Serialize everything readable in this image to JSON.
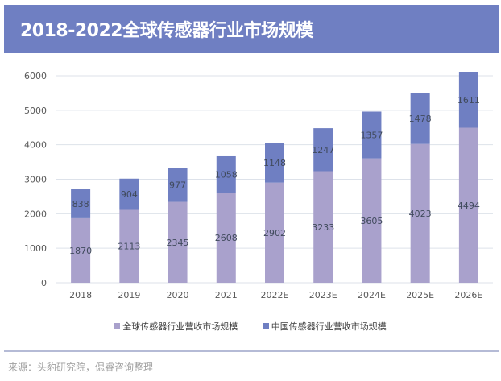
{
  "header": {
    "title": "2018-2022全球传感器行业市场规模"
  },
  "colors": {
    "title_bg": "#6f7fc2",
    "global": "#a9a1cc",
    "china": "#6f7fc2",
    "grid": "#dde2ea",
    "divider": "#b5bbd6"
  },
  "chart_data": {
    "type": "bar",
    "stacked": true,
    "title": "2018-2022全球传感器行业市场规模",
    "xlabel": "",
    "ylabel": "",
    "ylim": [
      0,
      6000
    ],
    "yticks": [
      0,
      1000,
      2000,
      3000,
      4000,
      5000,
      6000
    ],
    "grid": true,
    "legend_position": "bottom",
    "categories": [
      "2018",
      "2019",
      "2020",
      "2021",
      "2022E",
      "2023E",
      "2024E",
      "2025E",
      "2026E"
    ],
    "series": [
      {
        "name": "全球传感器行业营收市场规模",
        "color": "#a9a1cc",
        "values": [
          1870,
          2113,
          2345,
          2608,
          2902,
          3233,
          3605,
          4023,
          4494
        ]
      },
      {
        "name": "中国传感器行业营收市场规模",
        "color": "#6f7fc2",
        "values": [
          838,
          904,
          977,
          1058,
          1148,
          1247,
          1357,
          1478,
          1611
        ]
      }
    ]
  },
  "legend": [
    {
      "label": "全球传感器行业营收市场规模",
      "color": "#a9a1cc"
    },
    {
      "label": "中国传感器行业营收市场规模",
      "color": "#6f7fc2"
    }
  ],
  "footer": {
    "source": "来源：头豹研究院，偲睿咨询整理"
  }
}
